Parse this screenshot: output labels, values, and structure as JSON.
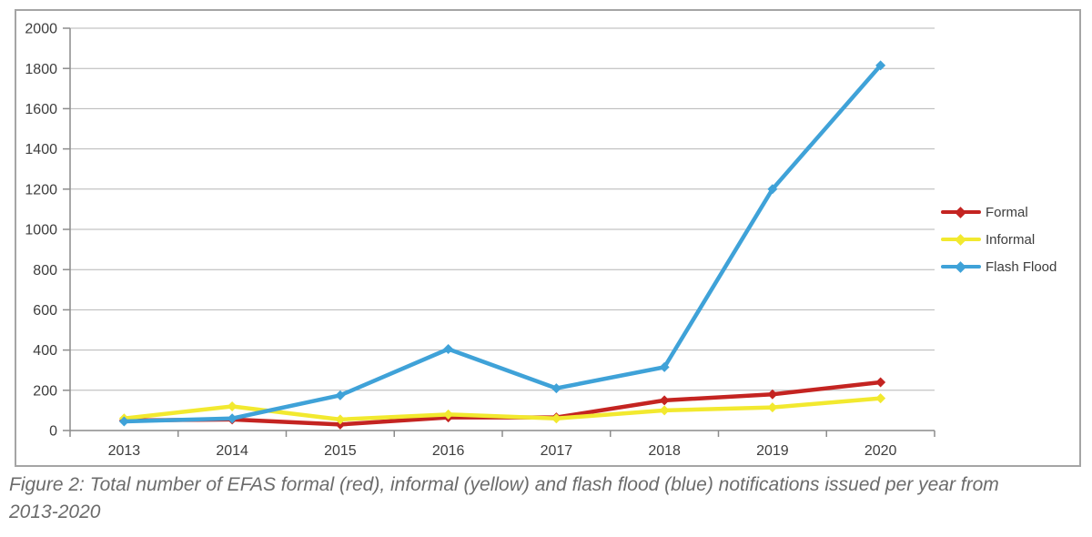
{
  "figure": {
    "caption_line1": "Figure 2: Total number of EFAS formal (red), informal (yellow) and flash flood (blue) notifications issued per year from",
    "caption_line2": "2013-2020"
  },
  "chart_data": {
    "type": "line",
    "title": "",
    "xlabel": "",
    "ylabel": "",
    "categories": [
      "2013",
      "2014",
      "2015",
      "2016",
      "2017",
      "2018",
      "2019",
      "2020"
    ],
    "series": [
      {
        "name": "Formal",
        "color": "#c42421",
        "values": [
          50,
          55,
          30,
          65,
          65,
          150,
          180,
          240
        ]
      },
      {
        "name": "Informal",
        "color": "#f2e92f",
        "values": [
          60,
          120,
          55,
          80,
          60,
          100,
          115,
          160
        ]
      },
      {
        "name": "Flash Flood",
        "color": "#3fa2d8",
        "values": [
          45,
          60,
          175,
          405,
          210,
          315,
          1200,
          1815
        ]
      }
    ],
    "yticks": [
      0,
      200,
      400,
      600,
      800,
      1000,
      1200,
      1400,
      1600,
      1800,
      2000
    ],
    "ylim": [
      0,
      2000
    ],
    "grid": "horizontal",
    "legend_position": "right",
    "marker": "diamond"
  }
}
